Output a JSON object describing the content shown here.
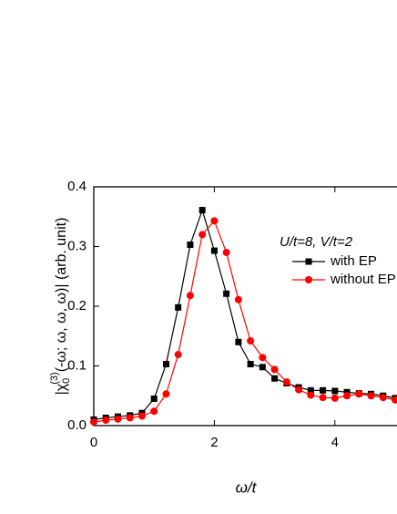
{
  "chart_data": {
    "type": "line",
    "ylabel_parts": [
      "|χ",
      "0",
      "(3)",
      "(-ω; ω, ω, ω)| (arb. unit)"
    ],
    "xlabel": "ω/t",
    "annotation": "U/t=8, V/t=2",
    "x": [
      0,
      0.2,
      0.4,
      0.6,
      0.8,
      1.0,
      1.2,
      1.4,
      1.6,
      1.8,
      2.0,
      2.2,
      2.4,
      2.6,
      2.8,
      3.0,
      3.2,
      3.4,
      3.6,
      3.8,
      4.0,
      4.2,
      4.4,
      4.6,
      4.8,
      5.0
    ],
    "series": [
      {
        "name": "with EP",
        "color": "#000000",
        "marker": "square",
        "values": [
          0.01,
          0.013,
          0.015,
          0.017,
          0.021,
          0.045,
          0.103,
          0.198,
          0.303,
          0.361,
          0.293,
          0.221,
          0.14,
          0.103,
          0.098,
          0.079,
          0.071,
          0.064,
          0.059,
          0.059,
          0.058,
          0.056,
          0.054,
          0.053,
          0.05,
          0.046
        ]
      },
      {
        "name": "without EP",
        "color": "#ff0000",
        "marker": "circle",
        "values": [
          0.006,
          0.009,
          0.011,
          0.013,
          0.016,
          0.024,
          0.053,
          0.119,
          0.218,
          0.32,
          0.343,
          0.29,
          0.211,
          0.142,
          0.114,
          0.094,
          0.073,
          0.06,
          0.051,
          0.047,
          0.046,
          0.05,
          0.053,
          0.05,
          0.047,
          0.043
        ]
      }
    ],
    "xlim": [
      0,
      5
    ],
    "xticks": [
      0,
      2,
      4
    ],
    "ylim": [
      0,
      0.4
    ],
    "yticks": [
      {
        "value": 0,
        "label": "0.0"
      },
      0.1,
      0.2,
      0.3,
      0.4
    ]
  }
}
